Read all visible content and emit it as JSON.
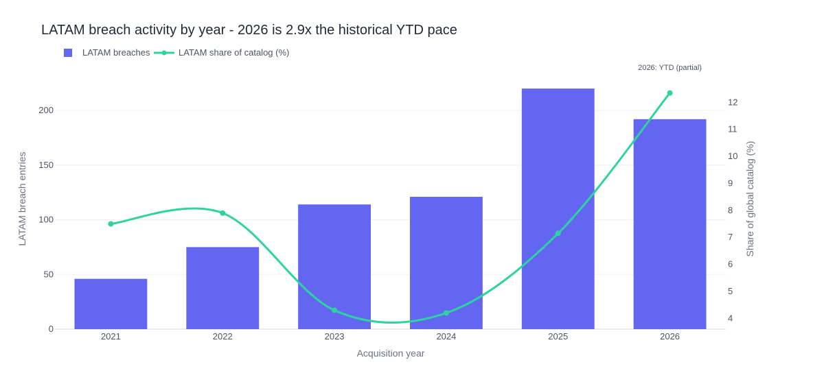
{
  "chart_data": {
    "type": "bar",
    "title": "LATAM breach activity by year  -  2026 is 2.9x the historical YTD pace",
    "xlabel": "Acquisition year",
    "ylabel": "LATAM breach entries",
    "y2label": "Share of global catalog (%)",
    "categories": [
      "2021",
      "2022",
      "2023",
      "2024",
      "2025",
      "2026"
    ],
    "ylim": [
      0,
      232
    ],
    "y2lim": [
      3.6,
      13.0
    ],
    "yticks": [
      0,
      50,
      100,
      150,
      200
    ],
    "y2ticks": [
      4,
      5,
      6,
      7,
      8,
      9,
      10,
      11,
      12
    ],
    "grid": true,
    "legend_position": "top-left",
    "series": [
      {
        "name": "LATAM breaches",
        "kind": "bar",
        "axis": "left",
        "color": "#6366f1",
        "values": [
          46,
          75,
          114,
          121,
          220,
          192
        ]
      },
      {
        "name": "LATAM share of catalog (%)",
        "kind": "line",
        "axis": "right",
        "color": "#2dd4a0",
        "values": [
          7.5,
          7.9,
          4.3,
          4.2,
          7.15,
          12.35
        ]
      }
    ],
    "annotations": [
      {
        "text": "2026: YTD (partial)",
        "x": "2026"
      }
    ]
  }
}
